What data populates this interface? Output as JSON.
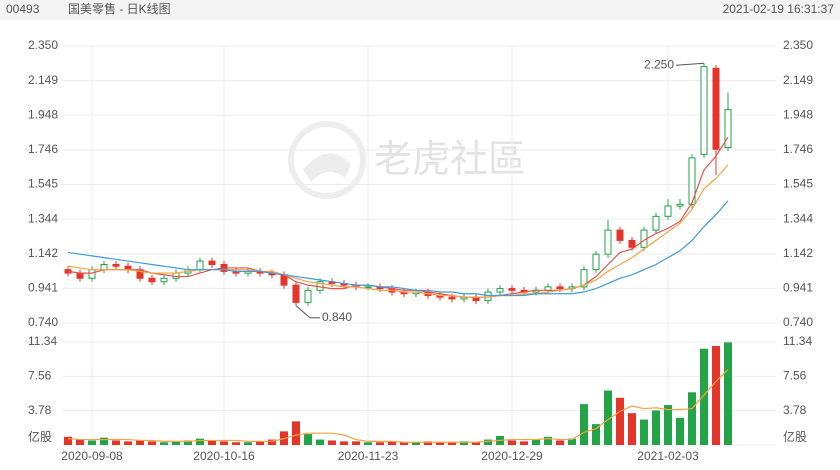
{
  "header": {
    "code": "00493",
    "name": "国美零售 - 日K线图",
    "time": "2021-02-19 16:31:37"
  },
  "watermark": "老虎社區",
  "chart_data": {
    "type": "candlestick",
    "categories": [
      null,
      null,
      "2020-09-08",
      null,
      null,
      null,
      null,
      null,
      null,
      null,
      null,
      null,
      null,
      "2020-10-16",
      null,
      null,
      null,
      null,
      null,
      null,
      null,
      null,
      null,
      null,
      null,
      "2020-11-23",
      null,
      null,
      null,
      null,
      null,
      null,
      null,
      null,
      null,
      null,
      null,
      "2020-12-29",
      null,
      null,
      null,
      null,
      null,
      null,
      null,
      null,
      null,
      null,
      null,
      null,
      "2021-02-03",
      null,
      null,
      null,
      null,
      null
    ],
    "open": [
      1.05,
      1.03,
      1.0,
      1.05,
      1.08,
      1.07,
      1.05,
      1.0,
      0.98,
      1.0,
      1.03,
      1.05,
      1.1,
      1.08,
      1.04,
      1.03,
      1.04,
      1.03,
      1.02,
      0.96,
      0.86,
      0.93,
      0.98,
      0.97,
      0.96,
      0.95,
      0.95,
      0.94,
      0.92,
      0.91,
      0.92,
      0.9,
      0.89,
      0.88,
      0.89,
      0.87,
      0.92,
      0.94,
      0.93,
      0.92,
      0.93,
      0.95,
      0.94,
      0.95,
      1.05,
      1.14,
      1.28,
      1.22,
      1.18,
      1.28,
      1.36,
      1.42,
      1.43,
      1.72,
      2.22,
      1.76
    ],
    "high": [
      1.07,
      1.05,
      1.07,
      1.1,
      1.1,
      1.09,
      1.07,
      1.02,
      1.02,
      1.05,
      1.07,
      1.12,
      1.12,
      1.1,
      1.06,
      1.06,
      1.06,
      1.05,
      1.04,
      0.98,
      0.95,
      1.0,
      1.0,
      0.99,
      0.98,
      0.97,
      0.97,
      0.96,
      0.94,
      0.94,
      0.94,
      0.92,
      0.91,
      0.91,
      0.91,
      0.94,
      0.96,
      0.96,
      0.95,
      0.95,
      0.97,
      0.97,
      0.97,
      1.07,
      1.16,
      1.34,
      1.3,
      1.24,
      1.3,
      1.38,
      1.46,
      1.46,
      1.72,
      2.25,
      2.24,
      2.08
    ],
    "low": [
      1.01,
      0.98,
      0.98,
      1.03,
      1.05,
      1.03,
      0.98,
      0.96,
      0.96,
      0.98,
      1.01,
      1.03,
      1.06,
      1.02,
      1.01,
      1.01,
      1.01,
      1.0,
      0.94,
      0.84,
      0.84,
      0.91,
      0.95,
      0.94,
      0.93,
      0.93,
      0.92,
      0.9,
      0.89,
      0.89,
      0.88,
      0.87,
      0.86,
      0.86,
      0.85,
      0.85,
      0.9,
      0.91,
      0.9,
      0.9,
      0.91,
      0.92,
      0.92,
      0.93,
      1.03,
      1.12,
      1.2,
      1.16,
      1.16,
      1.26,
      1.34,
      1.4,
      1.41,
      1.7,
      1.6,
      1.74
    ],
    "close": [
      1.03,
      1.0,
      1.05,
      1.08,
      1.07,
      1.05,
      1.0,
      0.98,
      1.0,
      1.03,
      1.05,
      1.1,
      1.08,
      1.04,
      1.03,
      1.04,
      1.03,
      1.02,
      0.96,
      0.86,
      0.93,
      0.98,
      0.97,
      0.96,
      0.95,
      0.95,
      0.94,
      0.92,
      0.91,
      0.92,
      0.9,
      0.89,
      0.88,
      0.89,
      0.87,
      0.92,
      0.94,
      0.93,
      0.92,
      0.93,
      0.95,
      0.94,
      0.95,
      1.05,
      1.14,
      1.28,
      1.22,
      1.18,
      1.28,
      1.36,
      1.42,
      1.43,
      1.7,
      2.23,
      1.75,
      1.98
    ],
    "up_color": "#22a447",
    "down_color": "#e5342a",
    "ylim": [
      0.74,
      2.35
    ],
    "yticks": [
      {
        "value": 2.35,
        "label": "2.350"
      },
      2.149,
      1.948,
      1.746,
      1.545,
      1.344,
      1.142,
      0.941,
      {
        "value": 0.74,
        "label": "0.740"
      }
    ],
    "grid": true,
    "max_label": {
      "value": 2.25,
      "label": "2.250"
    },
    "min_label": {
      "value": 0.84,
      "label": "0.840"
    },
    "moving_averages": [
      {
        "color": "#e8524a",
        "values": [
          1.04,
          1.03,
          1.03,
          1.05,
          1.05,
          1.05,
          1.05,
          1.03,
          1.02,
          1.01,
          1.01,
          1.03,
          1.05,
          1.06,
          1.06,
          1.06,
          1.04,
          1.03,
          1.02,
          0.98,
          0.96,
          0.95,
          0.94,
          0.94,
          0.96,
          0.96,
          0.95,
          0.94,
          0.93,
          0.93,
          0.92,
          0.91,
          0.9,
          0.89,
          0.89,
          0.89,
          0.9,
          0.91,
          0.92,
          0.93,
          0.93,
          0.93,
          0.94,
          0.96,
          1.01,
          1.08,
          1.15,
          1.17,
          1.22,
          1.26,
          1.29,
          1.33,
          1.44,
          1.63,
          1.71,
          1.82
        ]
      },
      {
        "color": "#f5a243",
        "values": [
          1.07,
          1.06,
          1.05,
          1.05,
          1.05,
          1.05,
          1.04,
          1.03,
          1.03,
          1.03,
          1.04,
          1.05,
          1.05,
          1.05,
          1.05,
          1.05,
          1.04,
          1.04,
          1.02,
          1.0,
          0.98,
          0.97,
          0.96,
          0.95,
          0.95,
          0.94,
          0.93,
          0.93,
          0.92,
          0.92,
          0.91,
          0.9,
          0.9,
          0.89,
          0.89,
          0.89,
          0.9,
          0.9,
          0.91,
          0.91,
          0.92,
          0.93,
          0.94,
          0.96,
          0.99,
          1.04,
          1.08,
          1.12,
          1.17,
          1.22,
          1.27,
          1.32,
          1.4,
          1.52,
          1.58,
          1.66
        ]
      },
      {
        "color": "#3f9be0",
        "values": [
          1.15,
          1.14,
          1.13,
          1.12,
          1.11,
          1.1,
          1.09,
          1.08,
          1.07,
          1.06,
          1.05,
          1.05,
          1.05,
          1.05,
          1.04,
          1.04,
          1.04,
          1.03,
          1.02,
          1.01,
          1.0,
          0.99,
          0.98,
          0.97,
          0.96,
          0.96,
          0.95,
          0.95,
          0.94,
          0.93,
          0.93,
          0.92,
          0.92,
          0.91,
          0.91,
          0.9,
          0.9,
          0.9,
          0.9,
          0.91,
          0.91,
          0.91,
          0.91,
          0.92,
          0.94,
          0.97,
          1.0,
          1.02,
          1.05,
          1.08,
          1.12,
          1.16,
          1.22,
          1.3,
          1.37,
          1.45
        ]
      }
    ],
    "volume": {
      "values": [
        0.9,
        0.6,
        0.5,
        0.8,
        0.5,
        0.4,
        0.5,
        0.4,
        0.3,
        0.4,
        0.5,
        0.7,
        0.5,
        0.4,
        0.3,
        0.3,
        0.4,
        0.6,
        1.5,
        2.6,
        1.2,
        0.6,
        0.5,
        0.4,
        0.4,
        0.3,
        0.3,
        0.4,
        0.3,
        0.3,
        0.4,
        0.3,
        0.3,
        0.4,
        0.3,
        0.6,
        1.0,
        0.5,
        0.4,
        0.6,
        0.9,
        0.5,
        0.7,
        4.5,
        2.3,
        6.0,
        5.2,
        3.5,
        2.8,
        3.8,
        4.4,
        3.0,
        5.8,
        10.6,
        10.9,
        11.3
      ],
      "ylim": [
        0,
        11.34
      ],
      "yticks": [
        3.78,
        7.56,
        11.34
      ],
      "unit": "亿股",
      "moving_averages": [
        {
          "color": "#f5a243",
          "values": [
            0.7,
            0.6,
            0.6,
            0.6,
            0.6,
            0.6,
            0.5,
            0.5,
            0.4,
            0.4,
            0.4,
            0.5,
            0.5,
            0.5,
            0.5,
            0.4,
            0.4,
            0.4,
            0.7,
            1.1,
            1.3,
            1.3,
            1.3,
            1.1,
            0.6,
            0.4,
            0.4,
            0.4,
            0.3,
            0.3,
            0.3,
            0.3,
            0.3,
            0.3,
            0.3,
            0.4,
            0.5,
            0.6,
            0.6,
            0.6,
            0.7,
            0.6,
            0.6,
            1.4,
            1.8,
            2.8,
            3.7,
            4.3,
            4.0,
            4.1,
            3.9,
            3.9,
            4.0,
            5.5,
            7.0,
            8.3
          ]
        }
      ]
    }
  }
}
